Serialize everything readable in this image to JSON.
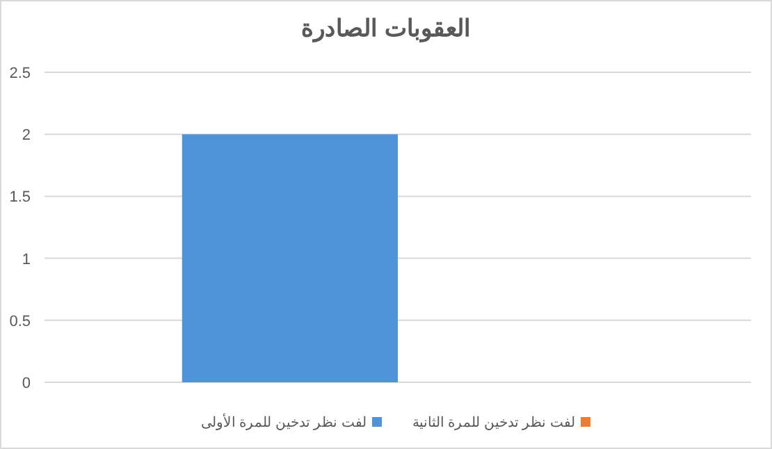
{
  "chart_data": {
    "type": "bar",
    "title": "العقوبات الصادرة",
    "categories": [
      null
    ],
    "series": [
      {
        "name": "لفت نظر تدخين للمرة الأولى",
        "color": "#4f93d8",
        "values": [
          2
        ]
      },
      {
        "name": "لفت نظر تدخين للمرة الثانية",
        "color": "#ed7d31",
        "values": [
          0
        ]
      }
    ],
    "ylim": [
      0,
      2.5
    ],
    "yticks": [
      0,
      0.5,
      1,
      1.5,
      2,
      2.5
    ],
    "grid": "y",
    "legend": "bottom"
  }
}
